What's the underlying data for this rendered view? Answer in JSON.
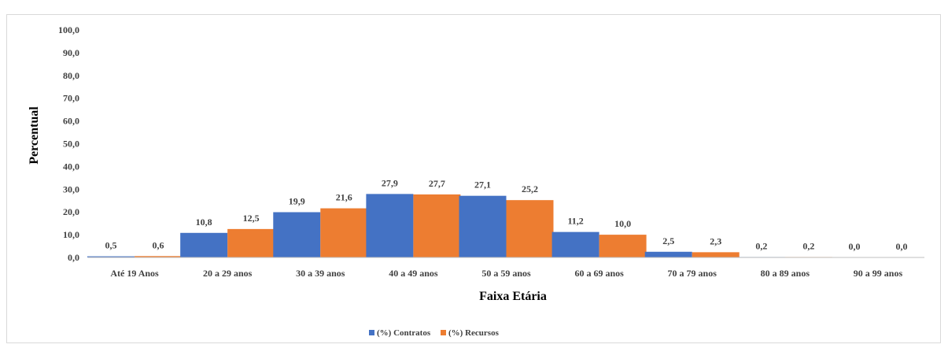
{
  "chart_data": {
    "type": "bar",
    "xlabel": "Faixa Etária",
    "ylabel": "Percentual",
    "ylim": [
      0,
      100
    ],
    "yticks": [
      "0,0",
      "10,0",
      "20,0",
      "30,0",
      "40,0",
      "50,0",
      "60,0",
      "70,0",
      "80,0",
      "90,0",
      "100,0"
    ],
    "categories": [
      "Até 19 Anos",
      "20 a 29 anos",
      "30 a 39 anos",
      "40 a 49 anos",
      "50 a 59 anos",
      "60 a 69 anos",
      "70 a 79 anos",
      "80 a 89 anos",
      "90 a 99 anos"
    ],
    "series": [
      {
        "name": "(%) Contratos",
        "color": "#4472C4",
        "values": [
          0.5,
          10.8,
          19.9,
          27.9,
          27.1,
          11.2,
          2.5,
          0.2,
          0.0
        ],
        "labels": [
          "0,5",
          "10,8",
          "19,9",
          "27,9",
          "27,1",
          "11,2",
          "2,5",
          "0,2",
          "0,0"
        ]
      },
      {
        "name": "(%) Recursos",
        "color": "#ED7D31",
        "values": [
          0.6,
          12.5,
          21.6,
          27.7,
          25.2,
          10.0,
          2.3,
          0.2,
          0.0
        ],
        "labels": [
          "0,6",
          "12,5",
          "21,6",
          "27,7",
          "25,2",
          "10,0",
          "2,3",
          "0,2",
          "0,0"
        ]
      }
    ],
    "grid": false,
    "legend_position": "bottom"
  }
}
